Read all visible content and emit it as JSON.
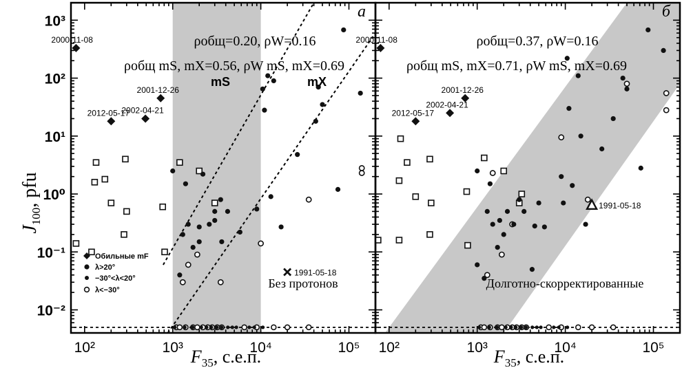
{
  "colors": {
    "shade": "#c8c8c8",
    "marker": "#111111",
    "axis": "#000000"
  },
  "axes": {
    "y_label_main": "J",
    "y_label_sub": "100",
    "y_label_unit": ", pfu",
    "x_label_main": "F",
    "x_label_sub": "35",
    "x_label_unit": ", с.е.п."
  },
  "chart_data": [
    {
      "type": "scatter",
      "panel_letter": "а",
      "xscale": "log",
      "yscale": "log",
      "xlim": [
        70,
        200000
      ],
      "ylim": [
        0.004,
        2000
      ],
      "x_ticks": [
        "10²",
        "10³",
        "10⁴",
        "10⁵"
      ],
      "y_ticks": [
        "10³",
        "10²",
        "10¹",
        "10⁰",
        "10⁻¹",
        "10⁻²"
      ],
      "shaded_band": {
        "label": "mS",
        "x_range": [
          1000,
          10000
        ]
      },
      "region_label_right": "mX",
      "stats_line1": "ρобщ=0.20, ρW=0.16",
      "stats_line2": "ρобщ mS, mX=0.56,  ρW mS, mX=0.69",
      "bottom_note": "Без протонов",
      "legend_items": [
        {
          "symbol": "diamond",
          "label": "Обильные mF"
        },
        {
          "symbol": "dot",
          "label": "λ>20°"
        },
        {
          "symbol": "dot-small",
          "label": "−30°<λ<20°"
        },
        {
          "symbol": "open",
          "label": "λ<−30°"
        }
      ],
      "date_labels": [
        {
          "text": "2000-11-08",
          "x": 80,
          "y": 330
        },
        {
          "text": "2001-12-26",
          "x": 730,
          "y": 45
        },
        {
          "text": "2012-05-17",
          "x": 200,
          "y": 18
        },
        {
          "text": "2002-04-21",
          "x": 490,
          "y": 20
        },
        {
          "text": "1991-05-18",
          "x": 20000,
          "y": 0.045
        }
      ],
      "diamonds": [
        [
          80,
          330
        ],
        [
          730,
          45
        ],
        [
          200,
          18
        ],
        [
          490,
          20
        ]
      ],
      "cross": [
        20000,
        0.045
      ],
      "squares": [
        [
          80,
          0.14
        ],
        [
          130,
          1.6
        ],
        [
          135,
          3.5
        ],
        [
          170,
          1.8
        ],
        [
          200,
          0.7
        ],
        [
          120,
          0.1
        ],
        [
          290,
          4
        ],
        [
          300,
          0.5
        ],
        [
          280,
          0.2
        ],
        [
          770,
          0.6
        ],
        [
          810,
          0.1
        ],
        [
          1200,
          3.5
        ],
        [
          2000,
          2.5
        ],
        [
          3000,
          0.7
        ]
      ],
      "dots": [
        [
          1000,
          2.5
        ],
        [
          1400,
          1.5
        ],
        [
          1300,
          0.2
        ],
        [
          1500,
          0.3
        ],
        [
          1700,
          0.12
        ],
        [
          2000,
          0.15
        ],
        [
          2200,
          2.2
        ],
        [
          2600,
          0.3
        ],
        [
          3000,
          0.5
        ],
        [
          3500,
          0.8
        ],
        [
          3600,
          0.15
        ],
        [
          4200,
          0.5
        ],
        [
          5800,
          0.22
        ],
        [
          9000,
          0.55
        ],
        [
          10500,
          65
        ],
        [
          11000,
          28
        ],
        [
          12000,
          110
        ],
        [
          14000,
          90
        ],
        [
          13000,
          0.9
        ],
        [
          17000,
          0.27
        ],
        [
          26000,
          4.8
        ],
        [
          42000,
          18
        ],
        [
          45000,
          70
        ],
        [
          50000,
          35
        ],
        [
          75000,
          1.2
        ],
        [
          87000,
          680
        ],
        [
          135000,
          55
        ],
        [
          1200,
          0.04
        ],
        [
          3000,
          0.35
        ],
        [
          2000,
          0.27
        ]
      ],
      "opens": [
        [
          1300,
          0.03
        ],
        [
          1500,
          0.06
        ],
        [
          1900,
          0.09
        ],
        [
          3500,
          0.03
        ],
        [
          10000,
          0.14
        ],
        [
          35000,
          0.8
        ],
        [
          140000,
          2.3
        ],
        [
          140000,
          2.8
        ]
      ],
      "zero_row_dots": [
        1000,
        1300,
        1600,
        2000,
        2300,
        2600,
        3000,
        3400,
        4000,
        4500,
        5000,
        7000,
        8000,
        10000
      ],
      "zero_row_opens": [
        1100,
        1200,
        1400,
        1700,
        1900,
        2200,
        2500,
        2800,
        3200,
        3600,
        6500,
        9000,
        14000,
        20000,
        35000
      ]
    },
    {
      "type": "scatter",
      "panel_letter": "б",
      "xscale": "log",
      "yscale": "log",
      "xlim": [
        70,
        200000
      ],
      "ylim": [
        0.004,
        2000
      ],
      "x_ticks": [
        "10²",
        "10³",
        "10⁴",
        "10⁵"
      ],
      "y_ticks": [],
      "stats_line1": "ρобщ=0.37, ρW=0.16",
      "stats_line2": "ρобщ mS, mX=0.71,  ρW mS, mX=0.69",
      "bottom_note": "Долготно-скорректированные",
      "date_labels": [
        {
          "text": "2000-11-08",
          "x": 80,
          "y": 330
        },
        {
          "text": "2001-12-26",
          "x": 730,
          "y": 45
        },
        {
          "text": "2012-05-17",
          "x": 200,
          "y": 18
        },
        {
          "text": "2002-04-21",
          "x": 490,
          "y": 25
        },
        {
          "text": "1991-05-18",
          "x": 20000,
          "y": 0.65
        }
      ],
      "diamonds": [
        [
          80,
          330
        ],
        [
          730,
          45
        ],
        [
          200,
          18
        ],
        [
          490,
          25
        ]
      ],
      "triangle": [
        20000,
        0.65
      ],
      "squares": [
        [
          75,
          0.16
        ],
        [
          130,
          1.7
        ],
        [
          135,
          9
        ],
        [
          160,
          3.5
        ],
        [
          200,
          0.9
        ],
        [
          130,
          0.16
        ],
        [
          290,
          4
        ],
        [
          300,
          0.7
        ],
        [
          290,
          0.2
        ],
        [
          760,
          1.1
        ],
        [
          780,
          0.13
        ],
        [
          1200,
          4.2
        ],
        [
          2000,
          2.5
        ],
        [
          3000,
          0.7
        ],
        [
          3200,
          1
        ]
      ],
      "dots": [
        [
          1000,
          2.5
        ],
        [
          1300,
          0.5
        ],
        [
          1400,
          1.5
        ],
        [
          1500,
          0.3
        ],
        [
          1700,
          0.12
        ],
        [
          1800,
          0.35
        ],
        [
          2000,
          0.2
        ],
        [
          2200,
          0.5
        ],
        [
          2600,
          0.3
        ],
        [
          3000,
          0.8
        ],
        [
          3400,
          0.5
        ],
        [
          4200,
          0.05
        ],
        [
          5800,
          0.27
        ],
        [
          9000,
          2
        ],
        [
          10500,
          220
        ],
        [
          11000,
          30
        ],
        [
          12000,
          1.4
        ],
        [
          14000,
          110
        ],
        [
          15000,
          10
        ],
        [
          17000,
          0.3
        ],
        [
          26000,
          6
        ],
        [
          35000,
          20
        ],
        [
          45000,
          100
        ],
        [
          50000,
          65
        ],
        [
          72000,
          2.8
        ],
        [
          87000,
          680
        ],
        [
          130000,
          300
        ],
        [
          1200,
          0.035
        ],
        [
          1000,
          0.06
        ],
        [
          4500,
          0.28
        ],
        [
          5000,
          0.7
        ],
        [
          9500,
          0.7
        ]
      ],
      "opens": [
        [
          1300,
          0.04
        ],
        [
          1500,
          2.3
        ],
        [
          1900,
          0.09
        ],
        [
          2500,
          0.3
        ],
        [
          9000,
          9.5
        ],
        [
          18000,
          0.8
        ],
        [
          50000,
          80
        ],
        [
          140000,
          28
        ],
        [
          140000,
          55
        ]
      ],
      "zero_row_dots": [
        1000,
        1300,
        1600,
        2000,
        2300,
        2600,
        3000,
        3400,
        4000,
        4500,
        5000,
        7000,
        8000,
        10000
      ],
      "zero_row_opens": [
        1100,
        1200,
        1400,
        1700,
        1900,
        2200,
        2500,
        2800,
        3200,
        3600,
        6500,
        9000,
        14000,
        20000,
        35000
      ]
    }
  ]
}
